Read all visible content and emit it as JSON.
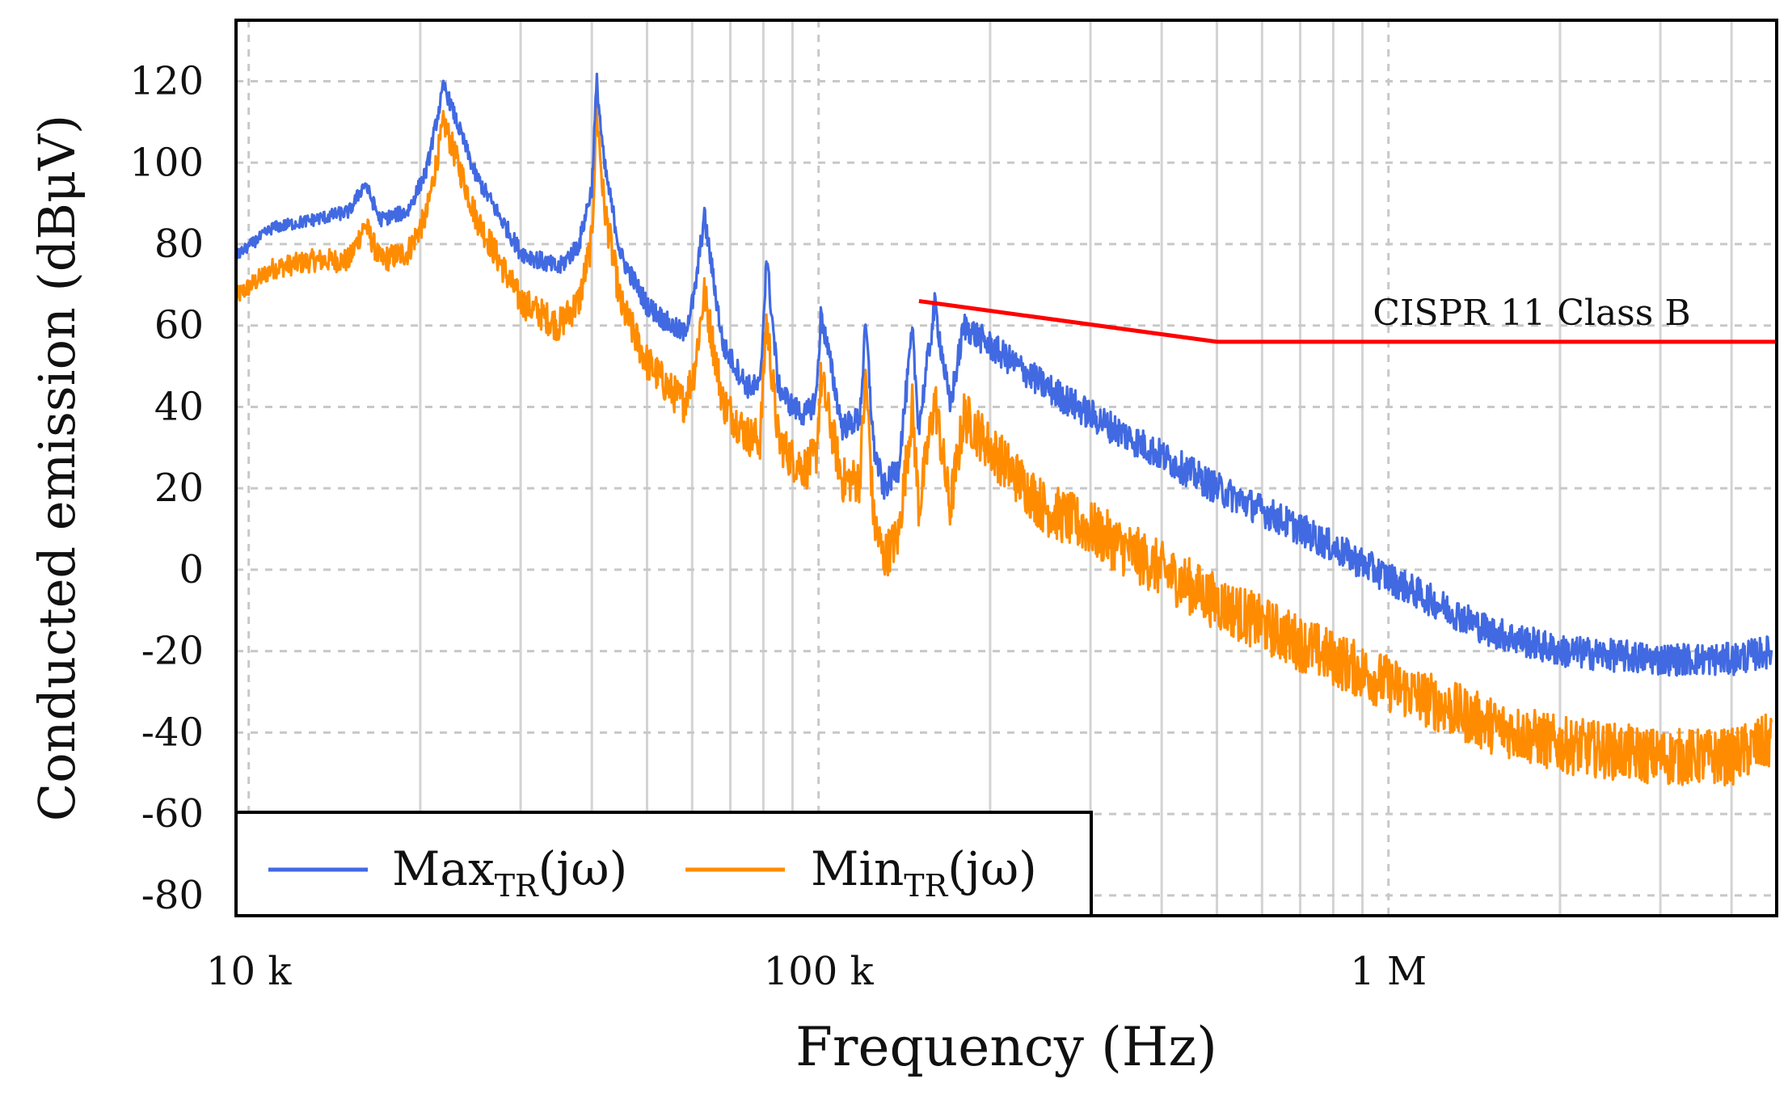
{
  "chart_data": {
    "type": "line",
    "xscale": "log",
    "xlim": [
      9500,
      4800000
    ],
    "ylim": [
      -85,
      135
    ],
    "xlabel": "Frequency (Hz)",
    "ylabel": "Conducted emission (dBμV)",
    "grid": true,
    "xticks": [
      {
        "value": 10000,
        "label": "10 k"
      },
      {
        "value": 100000,
        "label": "100 k"
      },
      {
        "value": 1000000,
        "label": "1 M"
      }
    ],
    "yticks": [
      {
        "value": 120,
        "label": "120"
      },
      {
        "value": 100,
        "label": "100"
      },
      {
        "value": 80,
        "label": "80"
      },
      {
        "value": 60,
        "label": "60"
      },
      {
        "value": 40,
        "label": "40"
      },
      {
        "value": 20,
        "label": "20"
      },
      {
        "value": 0,
        "label": "0"
      },
      {
        "value": -20,
        "label": "-20"
      },
      {
        "value": -40,
        "label": "-40"
      },
      {
        "value": -60,
        "label": "-60"
      },
      {
        "value": -80,
        "label": "-80"
      }
    ],
    "legend": {
      "position": "bottom-left",
      "entries": [
        {
          "main": "Max",
          "sub": "TR",
          "suffix": "(jω)",
          "color": "#4169e1"
        },
        {
          "main": "Min",
          "sub": "TR",
          "suffix": "(jω)",
          "color": "#ff8c00"
        }
      ]
    },
    "series": [
      {
        "name": "Max_TR(jω)",
        "color": "#4169e1",
        "noise_band": 4,
        "x": [
          9500,
          11000,
          13000,
          15000,
          16000,
          17000,
          19000,
          20500,
          22000,
          25000,
          30000,
          35000,
          38000,
          40000,
          40800,
          42000,
          45000,
          50000,
          55000,
          58000,
          60500,
          63000,
          68000,
          75000,
          79000,
          81000,
          85000,
          90000,
          95000,
          99000,
          101000,
          110000,
          118000,
          121000,
          125000,
          130000,
          138000,
          146000,
          150000,
          160000,
          170000,
          180000,
          200000,
          250000,
          300000,
          400000,
          500000,
          700000,
          1000000,
          1500000,
          2000000,
          3000000,
          4000000,
          4700000
        ],
        "y": [
          77,
          84,
          86,
          88,
          95,
          86,
          88,
          98,
          119,
          97,
          78,
          74,
          80,
          94,
          120,
          100,
          77,
          65,
          60,
          58,
          67,
          87,
          55,
          45,
          45,
          77,
          45,
          40,
          38,
          42,
          63,
          35,
          37,
          60,
          30,
          20,
          25,
          58,
          35,
          65,
          40,
          60,
          55,
          45,
          38,
          28,
          20,
          10,
          -2,
          -15,
          -20,
          -22,
          -22,
          -20
        ]
      },
      {
        "name": "Min_TR(jω)",
        "color": "#ff8c00",
        "noise_band": 7,
        "x": [
          9500,
          11000,
          13000,
          15000,
          16000,
          17000,
          19000,
          20500,
          22000,
          25000,
          30000,
          35000,
          38000,
          40000,
          40800,
          42000,
          45000,
          50000,
          55000,
          58000,
          60500,
          63000,
          68000,
          75000,
          79000,
          81000,
          85000,
          90000,
          95000,
          99000,
          101000,
          110000,
          118000,
          121000,
          125000,
          130000,
          138000,
          146000,
          150000,
          160000,
          170000,
          180000,
          200000,
          250000,
          300000,
          400000,
          500000,
          700000,
          1000000,
          1500000,
          2000000,
          3000000,
          4000000,
          4700000
        ],
        "y": [
          67,
          74,
          76,
          76,
          85,
          76,
          78,
          87,
          110,
          87,
          66,
          60,
          66,
          81,
          113,
          90,
          65,
          51,
          44,
          41,
          49,
          68,
          41,
          33,
          32,
          62,
          32,
          27,
          25,
          28,
          47,
          22,
          22,
          48,
          12,
          3,
          8,
          40,
          15,
          42,
          15,
          38,
          30,
          15,
          10,
          0,
          -8,
          -18,
          -28,
          -38,
          -43,
          -46,
          -46,
          -42
        ]
      },
      {
        "name": "CISPR 11 Class B",
        "color": "#ff0000",
        "label": "CISPR 11 Class B",
        "x": [
          150000,
          500000,
          4800000
        ],
        "y": [
          66,
          56,
          56
        ]
      }
    ]
  }
}
